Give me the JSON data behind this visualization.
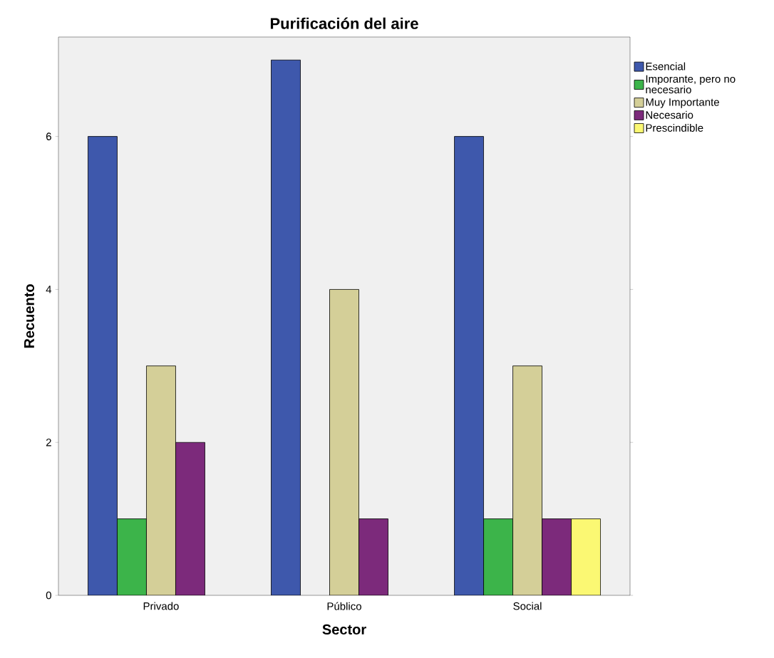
{
  "chart_data": {
    "type": "bar",
    "title": "Purificación del aire",
    "xlabel": "Sector",
    "ylabel": "Recuento",
    "categories": [
      "Privado",
      "Público",
      "Social"
    ],
    "series": [
      {
        "name": "Esencial",
        "color": "#3e58ac",
        "values": [
          6,
          7,
          6
        ]
      },
      {
        "name": "Imporante, pero no necesario",
        "color": "#3cb44a",
        "values": [
          1,
          null,
          1
        ]
      },
      {
        "name": "Muy Importante",
        "color": "#d4cf98",
        "values": [
          3,
          4,
          3
        ]
      },
      {
        "name": "Necesario",
        "color": "#7c2a7b",
        "values": [
          2,
          1,
          1
        ]
      },
      {
        "name": "Prescindible",
        "color": "#fbf873",
        "values": [
          null,
          null,
          1
        ]
      }
    ],
    "ylim": [
      0,
      7.3
    ],
    "yticks": [
      0,
      2,
      4,
      6
    ],
    "grid": false,
    "legend": "top right"
  }
}
